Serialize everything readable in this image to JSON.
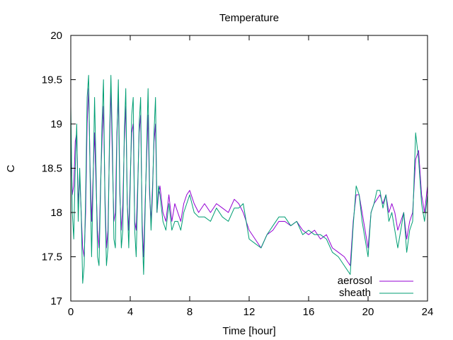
{
  "chart_data": {
    "type": "line",
    "title": "Temperature",
    "xlabel": "Time [hour]",
    "ylabel": "C",
    "xlim": [
      0,
      24
    ],
    "ylim": [
      17,
      20
    ],
    "xticks": [
      0,
      4,
      8,
      12,
      16,
      20,
      24
    ],
    "yticks": [
      17,
      17.5,
      18,
      18.5,
      19,
      19.5,
      20
    ],
    "ytick_labels": [
      "17",
      "17.5",
      "18",
      "18.5",
      "19",
      "19.5",
      "20"
    ],
    "grid": false,
    "legend_position": "bottom-right",
    "series": [
      {
        "name": "aerosol",
        "color": "#9400d3",
        "x": [
          0,
          0.1,
          0.2,
          0.3,
          0.4,
          0.5,
          0.6,
          0.7,
          0.8,
          0.9,
          1.0,
          1.1,
          1.2,
          1.3,
          1.4,
          1.5,
          1.6,
          1.7,
          1.8,
          1.9,
          2.0,
          2.1,
          2.2,
          2.3,
          2.4,
          2.5,
          2.6,
          2.7,
          2.8,
          2.9,
          3.0,
          3.1,
          3.2,
          3.3,
          3.4,
          3.5,
          3.6,
          3.7,
          3.8,
          3.9,
          4.0,
          4.1,
          4.2,
          4.3,
          4.4,
          4.5,
          4.6,
          4.7,
          4.8,
          4.9,
          5.0,
          5.1,
          5.2,
          5.3,
          5.4,
          5.5,
          5.6,
          5.7,
          5.8,
          5.9,
          6.0,
          6.2,
          6.4,
          6.6,
          6.8,
          7.0,
          7.2,
          7.4,
          7.6,
          7.8,
          8.0,
          8.3,
          8.6,
          9.0,
          9.4,
          9.8,
          10.2,
          10.6,
          11.0,
          11.3,
          11.6,
          12.0,
          12.4,
          12.8,
          13.2,
          13.6,
          14.0,
          14.4,
          14.8,
          15.2,
          15.6,
          16.0,
          16.4,
          16.8,
          17.2,
          17.6,
          18.0,
          18.4,
          18.8,
          19.0,
          19.2,
          19.4,
          19.6,
          19.8,
          20.0,
          20.2,
          20.4,
          20.6,
          20.8,
          21.0,
          21.2,
          21.4,
          21.6,
          21.8,
          22.0,
          22.2,
          22.4,
          22.6,
          22.8,
          23.0,
          23.2,
          23.4,
          23.6,
          23.8,
          24.0
        ],
        "y": [
          18.9,
          18.2,
          18.3,
          18.8,
          18.9,
          18.1,
          18.4,
          18.0,
          17.6,
          17.5,
          18.0,
          19.0,
          19.4,
          18.5,
          17.9,
          18.4,
          18.9,
          18.3,
          17.8,
          17.6,
          18.3,
          18.8,
          19.2,
          18.2,
          17.6,
          17.8,
          18.7,
          19.4,
          18.6,
          17.9,
          18.0,
          18.9,
          19.3,
          18.2,
          17.8,
          18.1,
          18.8,
          19.2,
          18.1,
          17.8,
          18.4,
          18.9,
          19.0,
          17.9,
          17.8,
          18.3,
          18.9,
          19.1,
          17.9,
          17.5,
          18.1,
          18.6,
          19.1,
          18.2,
          17.9,
          18.3,
          18.8,
          19.0,
          18.0,
          18.2,
          18.3,
          18.0,
          17.9,
          18.2,
          17.9,
          18.1,
          18.0,
          17.9,
          18.1,
          18.2,
          18.25,
          18.1,
          18.0,
          18.1,
          18.0,
          18.1,
          18.05,
          18.0,
          18.15,
          18.1,
          18.0,
          17.8,
          17.7,
          17.6,
          17.75,
          17.8,
          17.9,
          17.9,
          17.85,
          17.9,
          17.8,
          17.75,
          17.8,
          17.7,
          17.75,
          17.6,
          17.55,
          17.5,
          17.4,
          17.9,
          18.2,
          18.2,
          18.0,
          17.8,
          17.6,
          18.0,
          18.1,
          18.15,
          18.2,
          18.1,
          18.2,
          18.0,
          18.1,
          18.0,
          17.8,
          17.9,
          18.0,
          17.7,
          17.9,
          18.0,
          18.6,
          18.7,
          18.2,
          18.0,
          18.3
        ]
      },
      {
        "name": "sheath",
        "color": "#009e73",
        "x": [
          0,
          0.1,
          0.2,
          0.3,
          0.4,
          0.5,
          0.6,
          0.7,
          0.8,
          0.9,
          1.0,
          1.1,
          1.2,
          1.3,
          1.4,
          1.5,
          1.6,
          1.7,
          1.8,
          1.9,
          2.0,
          2.1,
          2.2,
          2.3,
          2.4,
          2.5,
          2.6,
          2.7,
          2.8,
          2.9,
          3.0,
          3.1,
          3.2,
          3.3,
          3.4,
          3.5,
          3.6,
          3.7,
          3.8,
          3.9,
          4.0,
          4.1,
          4.2,
          4.3,
          4.4,
          4.5,
          4.6,
          4.7,
          4.8,
          4.9,
          5.0,
          5.1,
          5.2,
          5.3,
          5.4,
          5.5,
          5.6,
          5.7,
          5.8,
          5.9,
          6.0,
          6.2,
          6.4,
          6.6,
          6.8,
          7.0,
          7.2,
          7.4,
          7.6,
          7.8,
          8.0,
          8.3,
          8.6,
          9.0,
          9.4,
          9.8,
          10.2,
          10.6,
          11.0,
          11.3,
          11.6,
          12.0,
          12.4,
          12.8,
          13.2,
          13.6,
          14.0,
          14.4,
          14.8,
          15.2,
          15.6,
          16.0,
          16.4,
          16.8,
          17.2,
          17.6,
          18.0,
          18.4,
          18.8,
          19.0,
          19.2,
          19.4,
          19.6,
          19.8,
          20.0,
          20.2,
          20.4,
          20.6,
          20.8,
          21.0,
          21.2,
          21.4,
          21.6,
          21.8,
          22.0,
          22.2,
          22.4,
          22.6,
          22.8,
          23.0,
          23.2,
          23.4,
          23.6,
          23.8,
          24.0
        ],
        "y": [
          19.2,
          18.0,
          17.7,
          18.5,
          19.0,
          17.9,
          18.5,
          18.0,
          17.2,
          17.4,
          18.2,
          19.3,
          19.55,
          18.4,
          17.5,
          18.3,
          19.3,
          18.5,
          17.5,
          17.4,
          18.2,
          19.0,
          19.5,
          18.1,
          17.4,
          17.6,
          18.8,
          19.55,
          18.8,
          17.7,
          17.6,
          18.8,
          19.5,
          18.3,
          17.6,
          17.8,
          18.9,
          19.4,
          18.1,
          17.6,
          18.3,
          19.1,
          19.3,
          17.8,
          17.5,
          18.2,
          19.0,
          19.3,
          17.8,
          17.3,
          18.0,
          18.7,
          19.4,
          18.3,
          17.8,
          18.2,
          18.9,
          19.3,
          18.0,
          18.3,
          18.2,
          17.9,
          17.8,
          18.1,
          17.8,
          17.9,
          17.9,
          17.8,
          18.0,
          18.1,
          18.2,
          18.0,
          17.95,
          17.95,
          17.9,
          18.05,
          17.95,
          17.9,
          18.05,
          18.05,
          18.1,
          17.7,
          17.65,
          17.6,
          17.75,
          17.85,
          17.95,
          17.95,
          17.85,
          17.9,
          17.75,
          17.8,
          17.75,
          17.75,
          17.7,
          17.55,
          17.5,
          17.4,
          17.3,
          17.85,
          18.3,
          18.2,
          17.9,
          17.7,
          17.5,
          18.0,
          18.1,
          18.25,
          18.25,
          18.05,
          18.2,
          17.9,
          18.0,
          17.8,
          17.6,
          17.8,
          18.0,
          17.55,
          17.8,
          17.9,
          18.9,
          18.6,
          18.1,
          17.9,
          18.2
        ]
      }
    ]
  }
}
